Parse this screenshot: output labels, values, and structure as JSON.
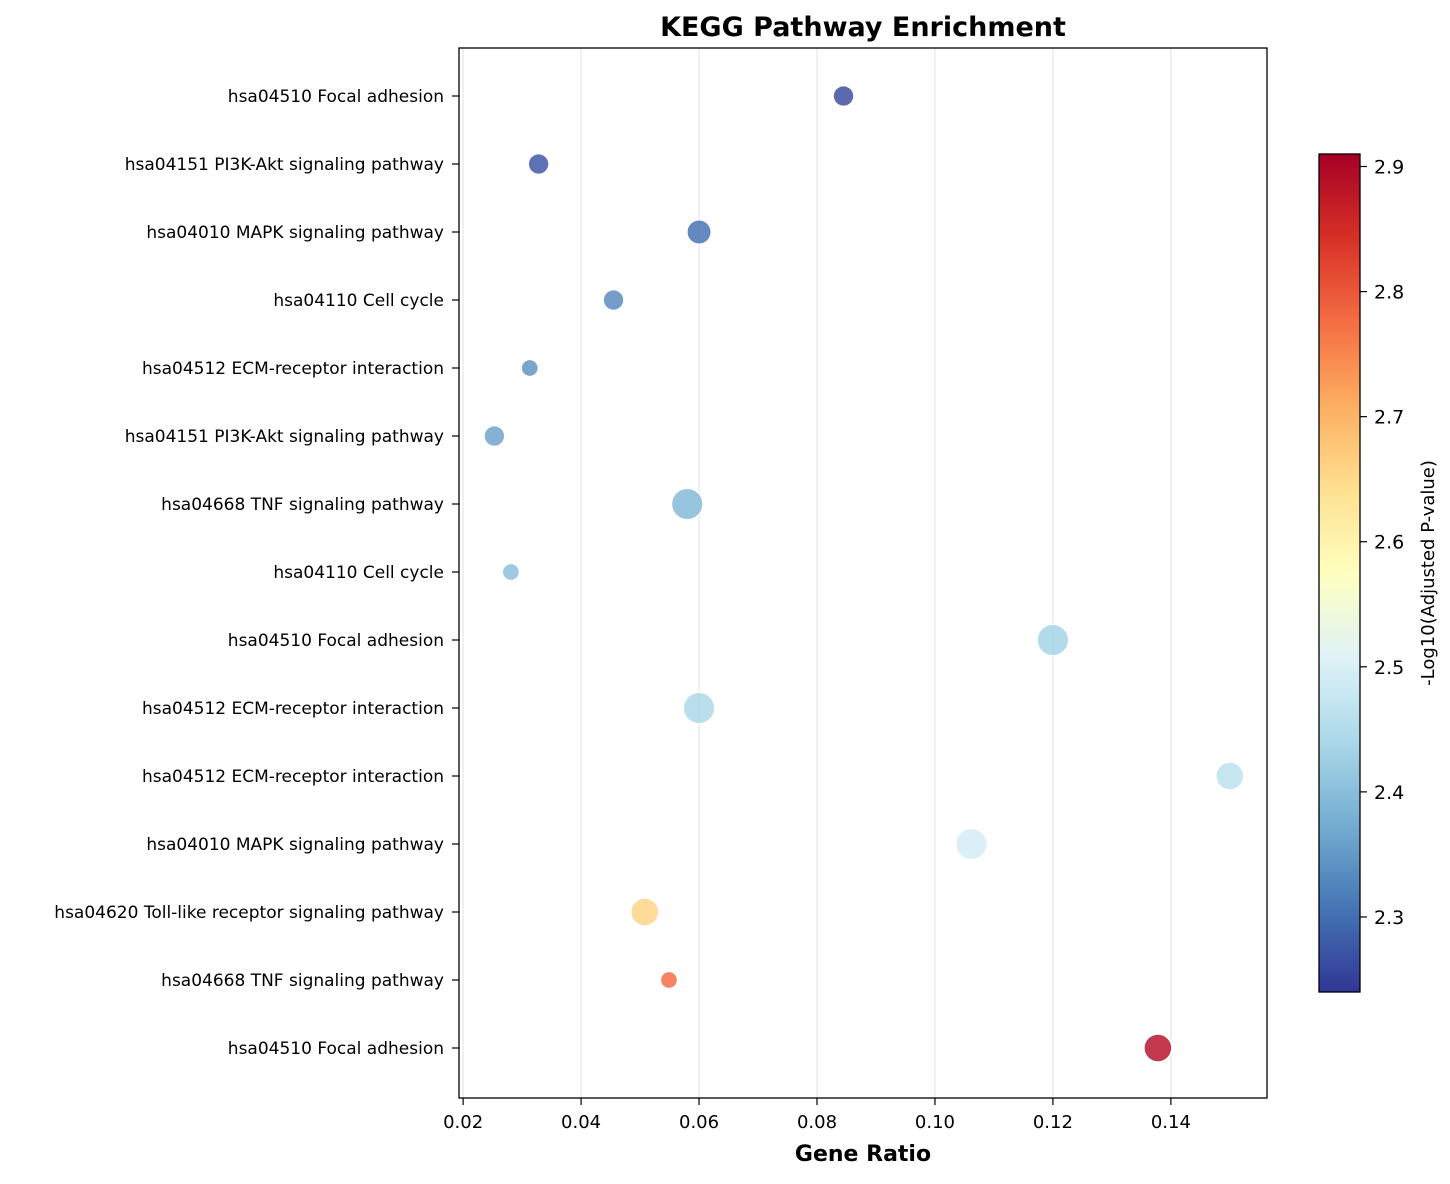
{
  "chart_data": {
    "type": "scatter",
    "title": "KEGG Pathway Enrichment",
    "xlabel": "Gene Ratio",
    "ylabel": "",
    "xlim": [
      0.0193,
      0.1563
    ],
    "xticks": [
      0.02,
      0.04,
      0.06,
      0.08,
      0.1,
      0.12,
      0.14
    ],
    "xtick_labels": [
      "0.02",
      "0.04",
      "0.06",
      "0.08",
      "0.10",
      "0.12",
      "0.14"
    ],
    "grid": "x",
    "colorbar": {
      "label": "-Log10(Adjusted P-value)",
      "min": 2.24,
      "max": 2.91,
      "ticks": [
        2.3,
        2.4,
        2.5,
        2.6,
        2.7,
        2.8,
        2.9
      ],
      "tick_labels": [
        "2.3",
        "2.4",
        "2.5",
        "2.6",
        "2.7",
        "2.8",
        "2.9"
      ],
      "colormap": "RdYlBu_r"
    },
    "points": [
      {
        "pathway": "hsa04510 Focal adhesion",
        "gene_ratio": 0.0845,
        "neg_log10_padj": 2.26,
        "size": 3
      },
      {
        "pathway": "hsa04151 PI3K-Akt signaling pathway",
        "gene_ratio": 0.0328,
        "neg_log10_padj": 2.27,
        "size": 3
      },
      {
        "pathway": "hsa04010 MAPK signaling pathway",
        "gene_ratio": 0.06,
        "neg_log10_padj": 2.3,
        "size": 4
      },
      {
        "pathway": "hsa04110 Cell cycle",
        "gene_ratio": 0.0455,
        "neg_log10_padj": 2.33,
        "size": 3
      },
      {
        "pathway": "hsa04512 ECM-receptor interaction",
        "gene_ratio": 0.0313,
        "neg_log10_padj": 2.34,
        "size": 2
      },
      {
        "pathway": "hsa04151 PI3K-Akt signaling pathway",
        "gene_ratio": 0.0253,
        "neg_log10_padj": 2.36,
        "size": 3
      },
      {
        "pathway": "hsa04668 TNF signaling pathway",
        "gene_ratio": 0.058,
        "neg_log10_padj": 2.39,
        "size": 6
      },
      {
        "pathway": "hsa04110 Cell cycle",
        "gene_ratio": 0.0281,
        "neg_log10_padj": 2.4,
        "size": 2
      },
      {
        "pathway": "hsa04510 Focal adhesion",
        "gene_ratio": 0.12,
        "neg_log10_padj": 2.43,
        "size": 6
      },
      {
        "pathway": "hsa04512 ECM-receptor interaction",
        "gene_ratio": 0.06,
        "neg_log10_padj": 2.44,
        "size": 6
      },
      {
        "pathway": "hsa04512 ECM-receptor interaction",
        "gene_ratio": 0.15,
        "neg_log10_padj": 2.46,
        "size": 5
      },
      {
        "pathway": "hsa04010 MAPK signaling pathway",
        "gene_ratio": 0.1062,
        "neg_log10_padj": 2.49,
        "size": 6
      },
      {
        "pathway": "hsa04620 Toll-like receptor signaling pathway",
        "gene_ratio": 0.0508,
        "neg_log10_padj": 2.66,
        "size": 5
      },
      {
        "pathway": "hsa04668 TNF signaling pathway",
        "gene_ratio": 0.0549,
        "neg_log10_padj": 2.78,
        "size": 2
      },
      {
        "pathway": "hsa04510 Focal adhesion",
        "gene_ratio": 0.1378,
        "neg_log10_padj": 2.89,
        "size": 5
      }
    ]
  }
}
